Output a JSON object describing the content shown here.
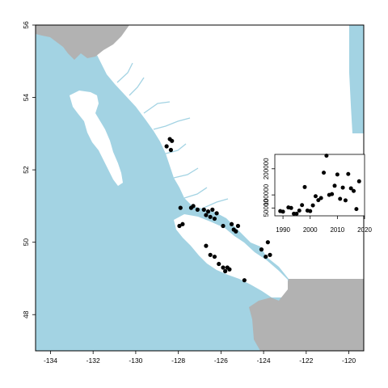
{
  "map": {
    "x_ticks": [
      "-134",
      "-132",
      "-130",
      "-128",
      "-126",
      "-124",
      "-122",
      "-120"
    ],
    "y_ticks": [
      "48",
      "50",
      "52",
      "54",
      "56"
    ],
    "colors": {
      "sea": "#a3d3e3",
      "land_bc": "#ffffff",
      "land_other": "#b2b2b2",
      "points": "#000000"
    }
  },
  "chart_data": {
    "type": "scatter",
    "title": "",
    "xlabel": "",
    "ylabel": "",
    "xlim": [
      1987,
      2020
    ],
    "ylim": [
      20000,
      255000
    ],
    "x_ticks": [
      "1990",
      "2000",
      "2010",
      "2020"
    ],
    "y_ticks": [
      "50000",
      "100000",
      "200000"
    ],
    "grid": false,
    "legend": "none",
    "points": [
      {
        "x": 1989,
        "y": 38000
      },
      {
        "x": 1990,
        "y": 36000
      },
      {
        "x": 1992,
        "y": 52000
      },
      {
        "x": 1993,
        "y": 50000
      },
      {
        "x": 1994,
        "y": 28000
      },
      {
        "x": 1995,
        "y": 28000
      },
      {
        "x": 1996,
        "y": 40000
      },
      {
        "x": 1997,
        "y": 61000
      },
      {
        "x": 1998,
        "y": 130000
      },
      {
        "x": 1999,
        "y": 40000
      },
      {
        "x": 2000,
        "y": 38000
      },
      {
        "x": 2001,
        "y": 60000
      },
      {
        "x": 2002,
        "y": 95000
      },
      {
        "x": 2003,
        "y": 80000
      },
      {
        "x": 2004,
        "y": 88000
      },
      {
        "x": 2005,
        "y": 185000
      },
      {
        "x": 2006,
        "y": 250000
      },
      {
        "x": 2007,
        "y": 100000
      },
      {
        "x": 2008,
        "y": 103000
      },
      {
        "x": 2009,
        "y": 135000
      },
      {
        "x": 2010,
        "y": 178000
      },
      {
        "x": 2011,
        "y": 85000
      },
      {
        "x": 2012,
        "y": 128000
      },
      {
        "x": 2013,
        "y": 79000
      },
      {
        "x": 2014,
        "y": 180000
      },
      {
        "x": 2015,
        "y": 125000
      },
      {
        "x": 2016,
        "y": 115000
      },
      {
        "x": 2017,
        "y": 46000
      },
      {
        "x": 2018,
        "y": 152000
      }
    ]
  },
  "sightings": [
    {
      "lon": -128.4,
      "lat": 52.85
    },
    {
      "lon": -128.3,
      "lat": 52.8
    },
    {
      "lon": -128.55,
      "lat": 52.65
    },
    {
      "lon": -128.35,
      "lat": 52.55
    },
    {
      "lon": -127.9,
      "lat": 50.95
    },
    {
      "lon": -127.4,
      "lat": 50.95
    },
    {
      "lon": -127.3,
      "lat": 51.0
    },
    {
      "lon": -127.1,
      "lat": 50.9
    },
    {
      "lon": -126.8,
      "lat": 50.9
    },
    {
      "lon": -126.7,
      "lat": 50.75
    },
    {
      "lon": -126.6,
      "lat": 50.85
    },
    {
      "lon": -126.5,
      "lat": 50.7
    },
    {
      "lon": -126.4,
      "lat": 50.9
    },
    {
      "lon": -126.3,
      "lat": 50.65
    },
    {
      "lon": -126.2,
      "lat": 50.8
    },
    {
      "lon": -125.9,
      "lat": 50.45
    },
    {
      "lon": -125.5,
      "lat": 50.5
    },
    {
      "lon": -125.4,
      "lat": 50.35
    },
    {
      "lon": -125.3,
      "lat": 50.3
    },
    {
      "lon": -125.2,
      "lat": 50.45
    },
    {
      "lon": -127.8,
      "lat": 50.5
    },
    {
      "lon": -127.95,
      "lat": 50.45
    },
    {
      "lon": -126.7,
      "lat": 49.9
    },
    {
      "lon": -126.5,
      "lat": 49.65
    },
    {
      "lon": -126.3,
      "lat": 49.6
    },
    {
      "lon": -126.1,
      "lat": 49.4
    },
    {
      "lon": -125.9,
      "lat": 49.3
    },
    {
      "lon": -125.7,
      "lat": 49.3
    },
    {
      "lon": -125.8,
      "lat": 49.2
    },
    {
      "lon": -125.6,
      "lat": 49.25
    },
    {
      "lon": -124.9,
      "lat": 48.95
    },
    {
      "lon": -124.1,
      "lat": 49.8
    },
    {
      "lon": -123.8,
      "lat": 50.0
    },
    {
      "lon": -123.7,
      "lat": 49.65
    },
    {
      "lon": -123.9,
      "lat": 49.6
    }
  ]
}
